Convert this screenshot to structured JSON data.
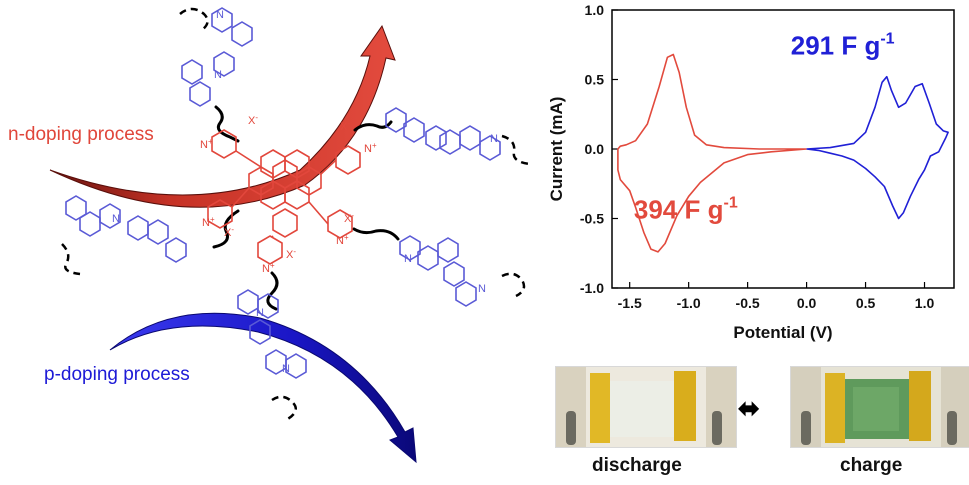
{
  "labels": {
    "n_doping": "n-doping process",
    "p_doping": "p-doping process",
    "discharge": "discharge",
    "charge": "charge",
    "charge_arrow": "⬌"
  },
  "molecule": {
    "counter_ion": "X",
    "counter_charge": "-",
    "nitrogen": "N",
    "nitrogen_charge": "+"
  },
  "colors": {
    "n_arrow": "#e0463a",
    "p_arrow": "#1d1ad6",
    "core": "#e2473c",
    "carbazole": "#5a5ad6",
    "linker": "#000000",
    "cv_red": "#e24a3d",
    "cv_blue": "#2020d6"
  },
  "chart_data": {
    "type": "line",
    "xlabel": "Potential (V)",
    "ylabel": "Current (mA)",
    "xlim": [
      -1.65,
      1.25
    ],
    "ylim": [
      -1.0,
      1.0
    ],
    "xticks": [
      -1.5,
      -1.0,
      -0.5,
      0.0,
      0.5,
      1.0
    ],
    "xtick_labels": [
      "-1.5",
      "-1.0",
      "-0.5",
      "0.0",
      "0.5",
      "1.0"
    ],
    "yticks": [
      -1.0,
      -0.5,
      0.0,
      0.5,
      1.0
    ],
    "ytick_labels": [
      "-1.0",
      "-0.5",
      "0.0",
      "0.5",
      "1.0"
    ],
    "grid": false,
    "series": [
      {
        "color": "#e24a3d",
        "x": [
          0.0,
          -0.4,
          -0.7,
          -0.85,
          -0.95,
          -1.02,
          -1.08,
          -1.13,
          -1.18,
          -1.25,
          -1.35,
          -1.45,
          -1.53,
          -1.58,
          -1.6,
          -1.6,
          -1.58,
          -1.5,
          -1.45,
          -1.38,
          -1.32,
          -1.26,
          -1.2,
          -1.1,
          -1.0,
          -0.9,
          -0.8,
          -0.7,
          -0.5,
          -0.3,
          0.0
        ],
        "y": [
          0.0,
          0.0,
          0.01,
          0.03,
          0.1,
          0.3,
          0.55,
          0.68,
          0.66,
          0.45,
          0.18,
          0.06,
          0.03,
          0.02,
          0.0,
          -0.15,
          -0.22,
          -0.3,
          -0.42,
          -0.6,
          -0.72,
          -0.74,
          -0.68,
          -0.48,
          -0.34,
          -0.24,
          -0.17,
          -0.1,
          -0.04,
          -0.02,
          0.0
        ]
      },
      {
        "color": "#2020d6",
        "x": [
          0.0,
          0.2,
          0.4,
          0.5,
          0.58,
          0.64,
          0.68,
          0.72,
          0.78,
          0.84,
          0.92,
          0.98,
          1.04,
          1.1,
          1.16,
          1.2,
          1.18,
          1.12,
          1.05,
          1.0,
          0.95,
          0.88,
          0.82,
          0.78,
          0.73,
          0.66,
          0.58,
          0.5,
          0.4,
          0.3,
          0.2,
          0.1,
          0.0
        ],
        "y": [
          0.0,
          0.01,
          0.04,
          0.12,
          0.3,
          0.48,
          0.52,
          0.42,
          0.3,
          0.33,
          0.45,
          0.47,
          0.33,
          0.18,
          0.13,
          0.12,
          0.08,
          -0.02,
          -0.05,
          -0.15,
          -0.22,
          -0.34,
          -0.46,
          -0.5,
          -0.41,
          -0.27,
          -0.2,
          -0.14,
          -0.08,
          -0.05,
          -0.03,
          -0.01,
          0.0
        ]
      }
    ],
    "annotations": [
      {
        "text": "291 F g",
        "sup": "-1",
        "color": "#2020d6"
      },
      {
        "text": "394 F g",
        "sup": "-1",
        "color": "#e24a3d"
      }
    ]
  }
}
